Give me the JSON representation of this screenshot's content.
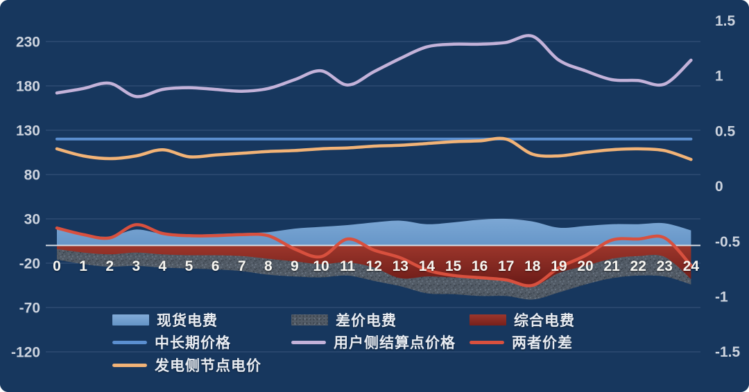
{
  "window": {
    "background": "#17375e"
  },
  "axes": {
    "left_ticks": [
      230,
      180,
      130,
      80,
      30,
      -20,
      -70,
      -120
    ],
    "right_ticks": [
      1.5,
      1,
      0.5,
      0,
      -0.5,
      -1,
      -1.5
    ],
    "x_ticks": [
      0,
      1,
      2,
      3,
      4,
      5,
      6,
      7,
      8,
      9,
      10,
      11,
      12,
      13,
      14,
      15,
      16,
      17,
      18,
      19,
      20,
      21,
      22,
      23,
      24
    ],
    "left_label_color": "#ccd3de",
    "right_label_color": "#ccd3de",
    "x_label_color": "#f7f6f1",
    "gridline_color": "#3c5a80",
    "zero_line_color": "#d8dce3"
  },
  "legend": {
    "items": [
      {
        "label": "现货电费",
        "swatch": "area",
        "color": "#6d9ecf",
        "row": 0,
        "col": 0
      },
      {
        "label": "差价电费",
        "swatch": "pattern",
        "color": "#525b66",
        "row": 0,
        "col": 1
      },
      {
        "label": "综合电费",
        "swatch": "area",
        "color": "#8e2b23",
        "row": 0,
        "col": 2
      },
      {
        "label": "中长期价格",
        "swatch": "line",
        "color": "#5b8fd0",
        "row": 1,
        "col": 0
      },
      {
        "label": "用户侧结算点价格",
        "swatch": "line",
        "color": "#c3b2d9",
        "row": 1,
        "col": 1
      },
      {
        "label": "两者价差",
        "swatch": "line",
        "color": "#d8503e",
        "row": 1,
        "col": 2
      },
      {
        "label": "发电侧节点电价",
        "swatch": "line",
        "color": "#f2b377",
        "row": 2,
        "col": 0
      }
    ]
  },
  "chart_data": {
    "type": "combo",
    "title": "",
    "xlabel": "",
    "ylabel_left": "",
    "ylabel_right": "",
    "x": [
      0,
      1,
      2,
      3,
      4,
      5,
      6,
      7,
      8,
      9,
      10,
      11,
      12,
      13,
      14,
      15,
      16,
      17,
      18,
      19,
      20,
      21,
      22,
      23,
      24
    ],
    "ylim_left": [
      -120,
      230
    ],
    "ylim_right": [
      -1.5,
      1.5
    ],
    "grid": true,
    "legend_position": "bottom-left",
    "series": [
      {
        "name": "现货电费",
        "type": "area",
        "axis": "left",
        "fill_top": "#7ca7d4",
        "fill_bottom": "#6696c8",
        "values": [
          21,
          13,
          10,
          18,
          13,
          12,
          13,
          14,
          15,
          19,
          21,
          23,
          26,
          28,
          24,
          26,
          29,
          30,
          27,
          20,
          22,
          24,
          24,
          25,
          17
        ]
      },
      {
        "name": "差价电费",
        "type": "area",
        "axis": "left",
        "fill": "pattern-gray",
        "values": [
          -16,
          -21,
          -24,
          -23,
          -25,
          -26,
          -27,
          -29,
          -33,
          -35,
          -36,
          -34,
          -40,
          -46,
          -54,
          -55,
          -57,
          -57,
          -61,
          -53,
          -44,
          -37,
          -34,
          -35,
          -44
        ]
      },
      {
        "name": "综合电费",
        "type": "area",
        "axis": "left",
        "fill_top": "#9c362b",
        "fill_bottom": "#691a17",
        "values": [
          -4,
          -8,
          -10,
          -8,
          -10,
          -11,
          -11,
          -12,
          -15,
          -18,
          -21,
          -19,
          -25,
          -37,
          -35,
          -36,
          -37,
          -38,
          -46,
          -31,
          -23,
          -15,
          -12,
          -13,
          -38
        ]
      },
      {
        "name": "中长期价格",
        "type": "line",
        "axis": "left",
        "color": "#5b8fd0",
        "width": 4,
        "values": [
          120,
          120,
          120,
          120,
          120,
          120,
          120,
          120,
          120,
          120,
          120,
          120,
          120,
          120,
          120,
          120,
          120,
          120,
          120,
          120,
          120,
          120,
          120,
          120,
          120
        ]
      },
      {
        "name": "用户侧结算点价格",
        "type": "line",
        "axis": "left",
        "color": "#c3b2d9",
        "width": 4.5,
        "values": [
          172,
          177,
          183,
          168,
          176,
          178,
          176,
          174,
          177,
          187,
          197,
          181,
          196,
          211,
          224,
          227,
          227,
          229,
          236,
          209,
          197,
          187,
          186,
          182,
          209
        ]
      },
      {
        "name": "两者价差",
        "type": "line",
        "axis": "right",
        "color": "#d8503e",
        "width": 4.5,
        "values": [
          -0.38,
          -0.44,
          -0.47,
          -0.35,
          -0.43,
          -0.45,
          -0.45,
          -0.44,
          -0.45,
          -0.57,
          -0.64,
          -0.48,
          -0.58,
          -0.65,
          -0.76,
          -0.81,
          -0.83,
          -0.85,
          -0.9,
          -0.74,
          -0.63,
          -0.49,
          -0.48,
          -0.47,
          -0.72
        ]
      },
      {
        "name": "发电侧节点电价",
        "type": "line",
        "axis": "left",
        "color": "#f2b377",
        "width": 4.5,
        "values": [
          109,
          101,
          98,
          101,
          108,
          100,
          102,
          104,
          106,
          107,
          109,
          110,
          112,
          113,
          115,
          117,
          118,
          120,
          103,
          101,
          105,
          108,
          109,
          107,
          97
        ]
      }
    ]
  }
}
